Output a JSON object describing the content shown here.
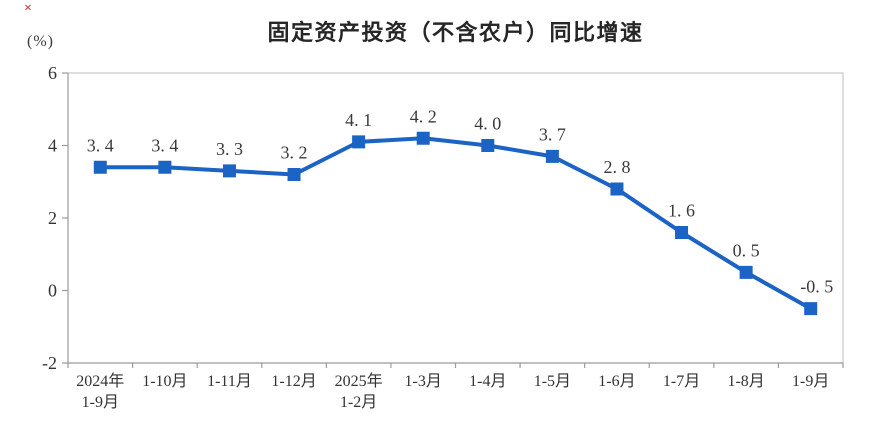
{
  "decorations": {
    "red_x_mark": "×"
  },
  "colors": {
    "line": "#1b63c5",
    "marker": "#1b63c5",
    "frame_light": "#d4d4d4",
    "axis": "#9b9b9b",
    "title_text": "#262626",
    "tick_text": "#333333",
    "data_label_text": "#3a3a3a",
    "background": "#ffffff"
  },
  "chart_data": {
    "type": "line",
    "title": "固定资产投资（不含农户）同比增速",
    "unit_label": "(%)",
    "xlabel": "",
    "ylabel": "(%)",
    "categories": [
      "2024年\n1-9月",
      "1-10月",
      "1-11月",
      "1-12月",
      "2025年\n1-2月",
      "1-3月",
      "1-4月",
      "1-5月",
      "1-6月",
      "1-7月",
      "1-8月",
      "1-9月"
    ],
    "values": [
      3.4,
      3.4,
      3.3,
      3.2,
      4.1,
      4.2,
      4.0,
      3.7,
      2.8,
      1.6,
      0.5,
      -0.5
    ],
    "data_labels": [
      "3.4",
      "3.4",
      "3.3",
      "3.2",
      "4.1",
      "4.2",
      "4.0",
      "3.7",
      "2.8",
      "1.6",
      "0.5",
      "-0.5"
    ],
    "y_ticks": [
      6,
      4,
      2,
      0,
      -2
    ],
    "ylim": [
      -2,
      6
    ],
    "grid": false,
    "legend_position": "none",
    "marker_shape": "square",
    "series": [
      {
        "name": "固定资产投资（不含农户）同比增速",
        "values": [
          3.4,
          3.4,
          3.3,
          3.2,
          4.1,
          4.2,
          4.0,
          3.7,
          2.8,
          1.6,
          0.5,
          -0.5
        ]
      }
    ]
  }
}
